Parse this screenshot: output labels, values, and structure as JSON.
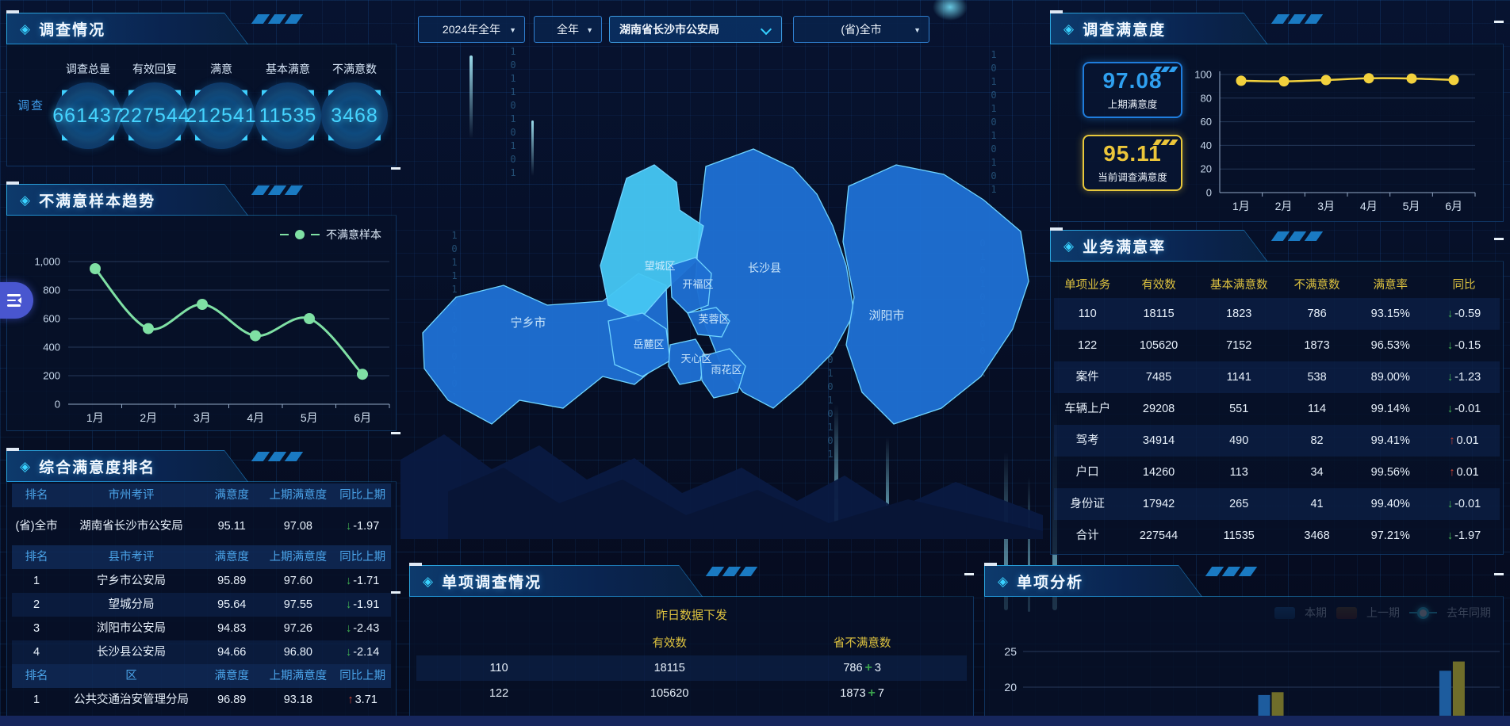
{
  "colors": {
    "accent": "#35d0ff",
    "yellow_header": "#ddc23f",
    "blue_header": "#4aa3e8",
    "up": "#d2473a",
    "down": "#3fae52",
    "map_blue": "#1e6fd2",
    "map_highlight": "#45c6f2",
    "map_border": "#6fd4ff",
    "trend_green": "#7fe0a4",
    "sat_yellow": "#f2d13d"
  },
  "filters": {
    "options": [
      {
        "label": "2024年全年"
      },
      {
        "label": "全年"
      },
      {
        "label": "湖南省长沙市公安局"
      },
      {
        "label": "(省)全市"
      }
    ]
  },
  "panels": {
    "survey": {
      "title": "调查情况",
      "side_label": "调查",
      "stats": [
        {
          "label": "调查总量",
          "value": "661437"
        },
        {
          "label": "有效回复",
          "value": "227544"
        },
        {
          "label": "满意",
          "value": "212541"
        },
        {
          "label": "基本满意",
          "value": "11535"
        },
        {
          "label": "不满意数",
          "value": "3468"
        }
      ]
    },
    "trend": {
      "title": "不满意样本趋势",
      "legend": "不满意样本"
    },
    "ranking": {
      "title": "综合满意度排名",
      "sections": [
        {
          "headers": [
            "排名",
            "市州考评",
            "满意度",
            "上期满意度",
            "同比上期"
          ],
          "rows": [
            {
              "rank": "(省)全市",
              "name": "湖南省长沙市公安局",
              "score": "95.11",
              "prev": "97.08",
              "delta": "-1.97",
              "dir": "down"
            }
          ]
        },
        {
          "headers": [
            "排名",
            "县市考评",
            "满意度",
            "上期满意度",
            "同比上期"
          ],
          "rows": [
            {
              "rank": "1",
              "name": "宁乡市公安局",
              "score": "95.89",
              "prev": "97.60",
              "delta": "-1.71",
              "dir": "down"
            },
            {
              "rank": "2",
              "name": "望城分局",
              "score": "95.64",
              "prev": "97.55",
              "delta": "-1.91",
              "dir": "down"
            },
            {
              "rank": "3",
              "name": "浏阳市公安局",
              "score": "94.83",
              "prev": "97.26",
              "delta": "-2.43",
              "dir": "down"
            },
            {
              "rank": "4",
              "name": "长沙县公安局",
              "score": "94.66",
              "prev": "96.80",
              "delta": "-2.14",
              "dir": "down"
            }
          ]
        },
        {
          "headers": [
            "排名",
            "区",
            "满意度",
            "上期满意度",
            "同比上期"
          ],
          "rows": [
            {
              "rank": "1",
              "name": "公共交通治安管理分局",
              "score": "96.89",
              "prev": "93.18",
              "delta": "3.71",
              "dir": "up"
            }
          ]
        }
      ]
    },
    "map": {
      "districts": [
        "宁乡市",
        "望城区",
        "长沙县",
        "浏阳市",
        "岳麓区",
        "开福区",
        "芙蓉区",
        "天心区",
        "雨花区"
      ],
      "highlighted": "望城区"
    },
    "single_survey": {
      "title": "单项调查情况",
      "subtitle": "昨日数据下发",
      "headers": [
        "有效数",
        "省不满意数"
      ],
      "rows": [
        {
          "name": "110",
          "valid": "18115",
          "dissatisfied": "786",
          "delta": "3"
        },
        {
          "name": "122",
          "valid": "105620",
          "dissatisfied": "1873",
          "delta": "7"
        }
      ]
    },
    "satisfaction": {
      "title": "调查满意度",
      "previous": {
        "value": "97.08",
        "label": "上期满意度"
      },
      "current": {
        "value": "95.11",
        "label": "当前调查满意度"
      }
    },
    "business": {
      "title": "业务满意率",
      "headers": [
        "单项业务",
        "有效数",
        "基本满意数",
        "不满意数",
        "满意率",
        "同比"
      ],
      "rows": [
        {
          "name": "110",
          "valid": "18115",
          "basic": "1823",
          "dissatisfied": "786",
          "rate": "93.15%",
          "delta": "-0.59",
          "dir": "down"
        },
        {
          "name": "122",
          "valid": "105620",
          "basic": "7152",
          "dissatisfied": "1873",
          "rate": "96.53%",
          "delta": "-0.15",
          "dir": "down"
        },
        {
          "name": "案件",
          "valid": "7485",
          "basic": "1141",
          "dissatisfied": "538",
          "rate": "89.00%",
          "delta": "-1.23",
          "dir": "down"
        },
        {
          "name": "车辆上户",
          "valid": "29208",
          "basic": "551",
          "dissatisfied": "114",
          "rate": "99.14%",
          "delta": "-0.01",
          "dir": "down"
        },
        {
          "name": "驾考",
          "valid": "34914",
          "basic": "490",
          "dissatisfied": "82",
          "rate": "99.41%",
          "delta": "0.01",
          "dir": "up"
        },
        {
          "name": "户口",
          "valid": "14260",
          "basic": "113",
          "dissatisfied": "34",
          "rate": "99.56%",
          "delta": "0.01",
          "dir": "up"
        },
        {
          "name": "身份证",
          "valid": "17942",
          "basic": "265",
          "dissatisfied": "41",
          "rate": "99.40%",
          "delta": "-0.01",
          "dir": "down"
        },
        {
          "name": "合计",
          "valid": "227544",
          "basic": "11535",
          "dissatisfied": "3468",
          "rate": "97.21%",
          "delta": "-1.97",
          "dir": "down"
        }
      ]
    },
    "analysis": {
      "title": "单项分析",
      "legend": [
        "本期",
        "上一期",
        "去年同期"
      ]
    }
  },
  "chart_data": [
    {
      "id": "dissatisfied_trend",
      "type": "line",
      "title": "不满意样本趋势",
      "categories": [
        "1月",
        "2月",
        "3月",
        "4月",
        "5月",
        "6月"
      ],
      "series": [
        {
          "name": "不满意样本",
          "values": [
            950,
            530,
            700,
            480,
            600,
            210
          ]
        }
      ],
      "ylim": [
        0,
        1000
      ],
      "yticks": [
        0,
        200,
        400,
        600,
        800,
        1000
      ],
      "ylabels": [
        "0",
        "200",
        "400",
        "600",
        "800",
        "1,000"
      ],
      "grid": true,
      "legend_position": "top-right",
      "color": "#7fe0a4"
    },
    {
      "id": "satisfaction_trend",
      "type": "line",
      "title": "调查满意度",
      "categories": [
        "1月",
        "2月",
        "3月",
        "4月",
        "5月",
        "6月"
      ],
      "series": [
        {
          "name": "调查满意度",
          "values": [
            94.7,
            94.2,
            95.3,
            96.8,
            96.6,
            95.4
          ]
        }
      ],
      "ylim": [
        0,
        100
      ],
      "yticks": [
        0,
        20,
        40,
        60,
        80,
        100
      ],
      "ylabels": [
        "0",
        "20",
        "40",
        "60",
        "80",
        "100"
      ],
      "grid": true,
      "color": "#f2d13d"
    },
    {
      "id": "single_item_analysis",
      "type": "bar",
      "title": "单项分析",
      "legend": [
        "本期",
        "上一期",
        "去年同期"
      ],
      "yticks_visible": [
        25,
        20
      ],
      "note": "chart partially cut off at bottom edge of screen",
      "visible_groups": [
        {
          "x_percent": 52,
          "values": {
            "本期": 18.9,
            "上一期": 19.3
          }
        },
        {
          "x_percent": 90,
          "values": {
            "本期": 22.3,
            "上一期": 23.6
          }
        }
      ],
      "colors": {
        "本期": "#1d5c9e",
        "上一期": "#6f6d2a",
        "去年同期": "#35e0ff"
      }
    }
  ],
  "decor": {
    "binary_columns": [
      "1011101010101",
      "1011010101010",
      "1010101010101",
      "0101010101011",
      "1010101011"
    ]
  }
}
